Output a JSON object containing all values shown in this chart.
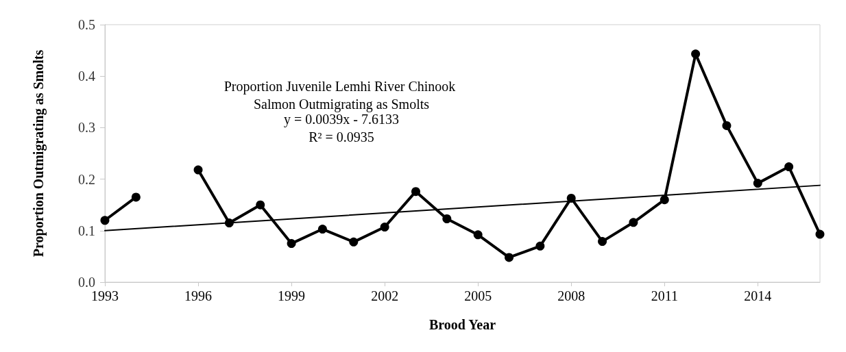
{
  "chart_data": {
    "type": "line",
    "title": "Proportion Juvenile Lemhi River Chinook Salmon Outmigrating as Smolts",
    "xlabel": "Brood Year",
    "ylabel": "Proportion Outmigrating as Smolts",
    "annotations": [
      "y = 0.0039x - 7.6133",
      "R² = 0.0935"
    ],
    "x": [
      1993,
      1994,
      1995,
      1996,
      1997,
      1998,
      1999,
      2000,
      2001,
      2002,
      2003,
      2004,
      2005,
      2006,
      2007,
      2008,
      2009,
      2010,
      2011,
      2012,
      2013,
      2014,
      2015,
      2016
    ],
    "series": [
      {
        "color": "#000000",
        "values": [
          0.12,
          0.165,
          null,
          0.218,
          0.115,
          0.15,
          0.075,
          0.103,
          0.078,
          0.107,
          0.176,
          0.123,
          0.092,
          0.048,
          0.07,
          0.163,
          0.079,
          0.116,
          0.16,
          0.443,
          0.304,
          0.192,
          0.224,
          0.093
        ]
      },
      {
        "type": "line",
        "marker": "none",
        "color": "#000000",
        "x": [
          1993,
          2016
        ],
        "values": [
          0.1,
          0.188
        ]
      }
    ],
    "xlim": [
      1993,
      2016
    ],
    "xticks": [
      1993,
      1996,
      1999,
      2002,
      2005,
      2008,
      2011,
      2014
    ],
    "ylim": [
      0,
      0.5
    ],
    "yticks": [
      {
        "value": 0,
        "label": "0.0"
      },
      {
        "value": 0.1,
        "label": "0.1"
      },
      {
        "value": 0.2,
        "label": "0.2"
      },
      {
        "value": 0.3,
        "label": "0.3"
      },
      {
        "value": 0.4,
        "label": "0.4"
      },
      {
        "value": 0.5,
        "label": "0.5"
      }
    ],
    "grid": false,
    "marker": "circle",
    "line_style": "solid"
  }
}
